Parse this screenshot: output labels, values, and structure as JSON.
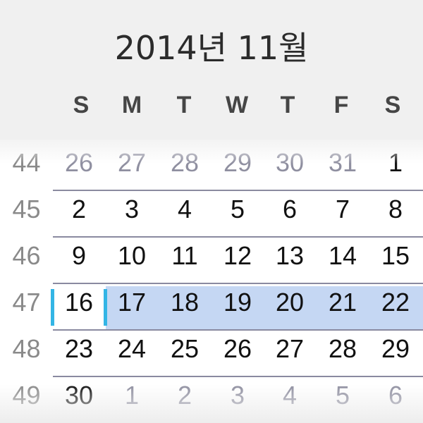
{
  "calendar": {
    "month_title": "2014년 11월",
    "weekdays": [
      "S",
      "M",
      "T",
      "W",
      "T",
      "F",
      "S"
    ],
    "selected_day": "16",
    "weeks": [
      {
        "number": "44",
        "days": [
          {
            "label": "26",
            "current": false
          },
          {
            "label": "27",
            "current": false
          },
          {
            "label": "28",
            "current": false
          },
          {
            "label": "29",
            "current": false
          },
          {
            "label": "30",
            "current": false
          },
          {
            "label": "31",
            "current": false
          },
          {
            "label": "1",
            "current": true
          }
        ]
      },
      {
        "number": "45",
        "days": [
          {
            "label": "2",
            "current": true
          },
          {
            "label": "3",
            "current": true
          },
          {
            "label": "4",
            "current": true
          },
          {
            "label": "5",
            "current": true
          },
          {
            "label": "6",
            "current": true
          },
          {
            "label": "7",
            "current": true
          },
          {
            "label": "8",
            "current": true
          }
        ]
      },
      {
        "number": "46",
        "days": [
          {
            "label": "9",
            "current": true
          },
          {
            "label": "10",
            "current": true
          },
          {
            "label": "11",
            "current": true
          },
          {
            "label": "12",
            "current": true
          },
          {
            "label": "13",
            "current": true
          },
          {
            "label": "14",
            "current": true
          },
          {
            "label": "15",
            "current": true
          }
        ]
      },
      {
        "number": "47",
        "days": [
          {
            "label": "16",
            "current": true
          },
          {
            "label": "17",
            "current": true
          },
          {
            "label": "18",
            "current": true
          },
          {
            "label": "19",
            "current": true
          },
          {
            "label": "20",
            "current": true
          },
          {
            "label": "21",
            "current": true
          },
          {
            "label": "22",
            "current": true
          }
        ]
      },
      {
        "number": "48",
        "days": [
          {
            "label": "23",
            "current": true
          },
          {
            "label": "24",
            "current": true
          },
          {
            "label": "25",
            "current": true
          },
          {
            "label": "26",
            "current": true
          },
          {
            "label": "27",
            "current": true
          },
          {
            "label": "28",
            "current": true
          },
          {
            "label": "29",
            "current": true
          }
        ]
      },
      {
        "number": "49",
        "days": [
          {
            "label": "30",
            "current": true
          },
          {
            "label": "1",
            "current": false
          },
          {
            "label": "2",
            "current": false
          },
          {
            "label": "3",
            "current": false
          },
          {
            "label": "4",
            "current": false
          },
          {
            "label": "5",
            "current": false
          },
          {
            "label": "6",
            "current": false
          }
        ]
      }
    ]
  },
  "colors": {
    "selected_week_background": "#c5d7f3",
    "selection_indicator": "#33b5e5",
    "header_background": "#f0f0f0"
  }
}
